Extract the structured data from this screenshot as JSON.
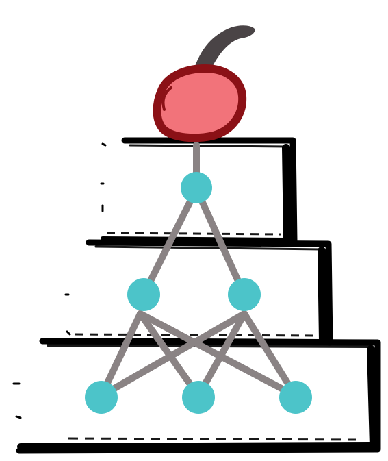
{
  "colors": {
    "background": "#ffffff",
    "cake_outline": "#000000",
    "cherry_fill": "#f2737a",
    "cherry_outline": "#8b1116",
    "cherry_stem": "#4a4446",
    "node_fill": "#4cc4c9",
    "edge": "#8a8384"
  },
  "icons": {
    "topping": "cherry-icon",
    "cake": "layered-cake-icon",
    "graph": "neural-network-graph"
  },
  "graph": {
    "layers": [
      1,
      2,
      3
    ],
    "edges": [
      [
        "top",
        "mid-left"
      ],
      [
        "top",
        "mid-right"
      ],
      [
        "mid-left",
        "bottom-left"
      ],
      [
        "mid-left",
        "bottom-center"
      ],
      [
        "mid-left",
        "bottom-right"
      ],
      [
        "mid-right",
        "bottom-left"
      ],
      [
        "mid-right",
        "bottom-center"
      ],
      [
        "mid-right",
        "bottom-right"
      ]
    ]
  }
}
